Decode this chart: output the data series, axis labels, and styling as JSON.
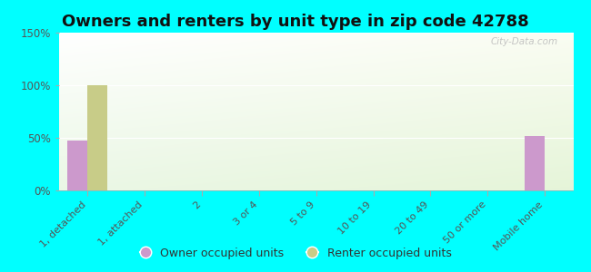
{
  "title": "Owners and renters by unit type in zip code 42788",
  "categories": [
    "1, detached",
    "1, attached",
    "2",
    "3 or 4",
    "5 to 9",
    "10 to 19",
    "20 to 49",
    "50 or more",
    "Mobile home"
  ],
  "owner_values": [
    47,
    0,
    0,
    0,
    0,
    0,
    0,
    0,
    52
  ],
  "renter_values": [
    100,
    0,
    0,
    0,
    0,
    0,
    0,
    0,
    0
  ],
  "owner_color": "#cc99cc",
  "renter_color": "#c8cc88",
  "ylim": [
    0,
    150
  ],
  "yticks": [
    0,
    50,
    100,
    150
  ],
  "ytick_labels": [
    "0%",
    "50%",
    "100%",
    "150%"
  ],
  "background_color": "#00ffff",
  "bar_width": 0.35,
  "title_fontsize": 13,
  "watermark": "City-Data.com",
  "legend_owner": "Owner occupied units",
  "legend_renter": "Renter occupied units"
}
